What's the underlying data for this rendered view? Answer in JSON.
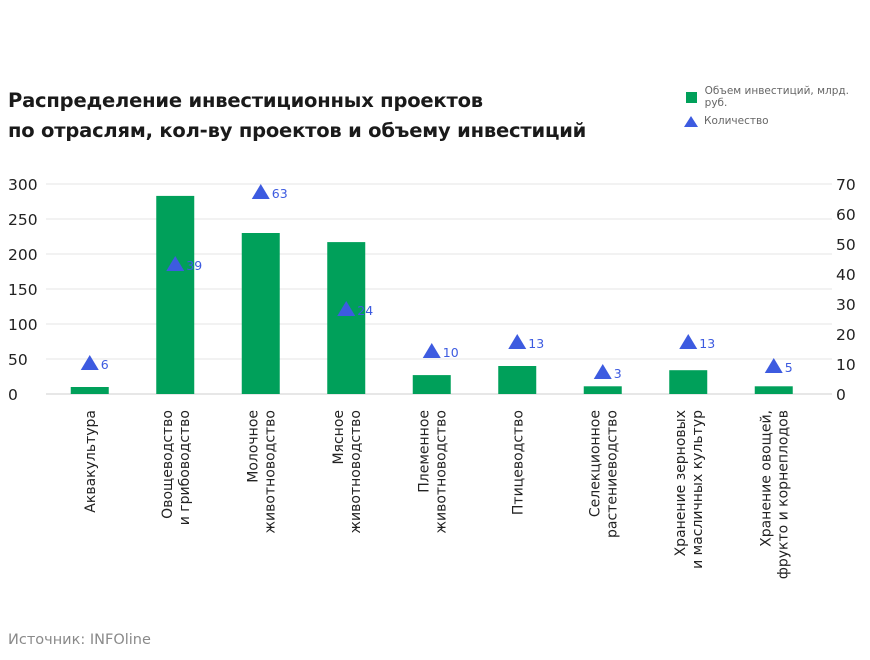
{
  "title_line1": "Распределение инвестиционных проектов",
  "title_line2": "по отраслям, кол-ву  проектов и объему инвестиций",
  "legend": {
    "bars": "Объем инвестиций, млрд. руб.",
    "markers": "Количество"
  },
  "source": "Источник: INFOline",
  "colors": {
    "bar": "#00a05a",
    "marker": "#3d5be0",
    "grid": "#e6e6e6"
  },
  "chart_data": {
    "type": "bar",
    "categories": [
      "Аквакультура",
      "Овощеводство\nи грибоводство",
      "Молочное\nживотноводство",
      "Мясное\nживотноводство",
      "Племенное\nживотноводство",
      "Птицеводство",
      "Селекционное\nрастениеводство",
      "Хранение зерновых\nи масличных культур",
      "Хранение овощей,\nфрукто и корнеплодов"
    ],
    "series": [
      {
        "name": "Объем инвестиций, млрд. руб.",
        "axis": "left",
        "type": "bar",
        "values": [
          10,
          283,
          230,
          217,
          27,
          40,
          11,
          34,
          11
        ]
      },
      {
        "name": "Количество",
        "axis": "right",
        "type": "marker",
        "values": [
          6,
          39,
          63,
          24,
          10,
          13,
          3,
          13,
          5
        ],
        "labels": [
          "6",
          "39",
          "63",
          "24",
          "10",
          "13",
          "3",
          "13",
          "5"
        ]
      }
    ],
    "left_ticks": [
      "0",
      "50",
      "100",
      "150",
      "200",
      "250",
      "300"
    ],
    "right_ticks": [
      "0",
      "10",
      "20",
      "30",
      "40",
      "50",
      "60",
      "70"
    ],
    "ylim_left": [
      0,
      300
    ],
    "ylim_right": [
      0,
      70
    ],
    "grid": true
  }
}
